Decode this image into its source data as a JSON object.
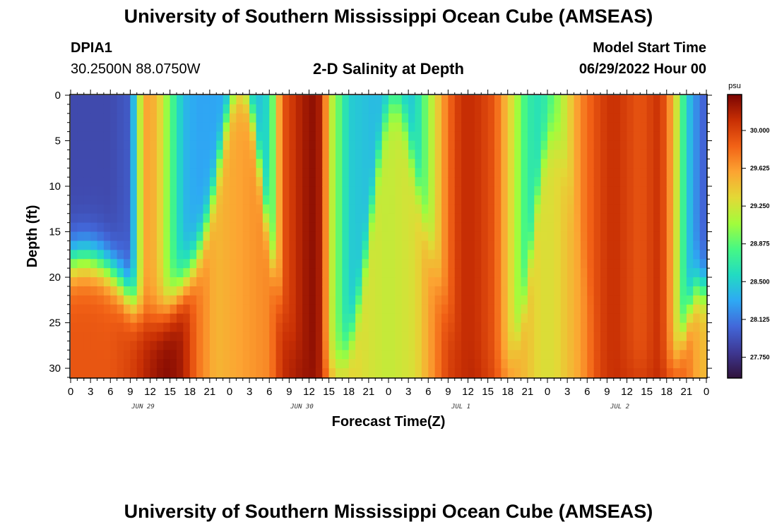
{
  "page": {
    "title_top": "University of Southern Mississippi Ocean Cube (AMSEAS)",
    "title_bottom": "University of Southern Mississippi Ocean Cube (AMSEAS)",
    "station_id": "DPIA1",
    "location": "30.2500N  88.0750W",
    "model_start_label": "Model Start Time",
    "model_start_value": "06/29/2022 Hour 00"
  },
  "colors": {
    "ramp": [
      "#30123b",
      "#3e3893",
      "#4267d9",
      "#2ea9f4",
      "#22dbc2",
      "#46f884",
      "#a2fc3c",
      "#e3d936",
      "#fca432",
      "#f26216",
      "#c82f04",
      "#7a0403"
    ]
  },
  "chart_data": {
    "type": "heatmap",
    "title": "2-D Salinity at Depth",
    "xlabel": "Forecast Time(Z)",
    "ylabel": "Depth (ft)",
    "y_ticks": [
      0,
      5,
      10,
      15,
      20,
      25,
      30
    ],
    "ylim": [
      0,
      31
    ],
    "x_tick_labels": [
      "0",
      "3",
      "6",
      "9",
      "12",
      "15",
      "18",
      "21",
      "0",
      "3",
      "6",
      "9",
      "12",
      "15",
      "18",
      "21",
      "0",
      "3",
      "6",
      "9",
      "12",
      "15",
      "18",
      "21",
      "0",
      "3",
      "6",
      "9",
      "12",
      "15",
      "18",
      "21",
      "0"
    ],
    "x_hours_range": [
      0,
      96
    ],
    "day_labels": [
      {
        "label": "JUN 29",
        "hour": 12
      },
      {
        "label": "JUN 30",
        "hour": 36
      },
      {
        "label": "JUL 1",
        "hour": 60
      },
      {
        "label": "JUL 2",
        "hour": 84
      }
    ],
    "colorbar": {
      "unit": "psu",
      "ticks": [
        "30.000",
        "29.625",
        "29.250",
        "28.875",
        "28.500",
        "28.125",
        "27.750"
      ],
      "tick_values": [
        30.0,
        29.625,
        29.25,
        28.875,
        28.5,
        28.125,
        27.75
      ],
      "range": [
        27.55,
        30.35
      ]
    },
    "surface_profile_hours": [
      0,
      6,
      9,
      11,
      13,
      15,
      17,
      19,
      22,
      27,
      30,
      32,
      35,
      37,
      38,
      39,
      42,
      46,
      48,
      52,
      55,
      57,
      59,
      61,
      64,
      67,
      69,
      71,
      73,
      77,
      80,
      82,
      84,
      86,
      89,
      91,
      92,
      93,
      95,
      96
    ],
    "surface_profile_psu": [
      27.9,
      27.9,
      28.0,
      29.6,
      29.5,
      28.9,
      28.4,
      28.3,
      28.3,
      28.3,
      28.6,
      29.9,
      30.2,
      30.3,
      30.1,
      29.3,
      28.5,
      28.4,
      28.4,
      28.5,
      29.3,
      29.8,
      30.1,
      30.1,
      29.9,
      29.2,
      28.7,
      28.6,
      28.9,
      29.7,
      30.0,
      30.1,
      30.0,
      29.9,
      30.1,
      29.5,
      29.0,
      28.5,
      28.1,
      28.0
    ],
    "bottom_profile_hours": [
      0,
      6,
      9,
      12,
      14,
      15,
      17,
      19,
      22,
      26,
      30,
      32,
      35,
      37,
      38,
      40,
      44,
      48,
      52,
      55,
      57,
      59,
      61,
      64,
      67,
      71,
      73,
      77,
      80,
      82,
      86,
      89,
      91,
      93,
      95,
      96
    ],
    "bottom_profile_psu": [
      29.9,
      29.9,
      30.0,
      30.2,
      30.3,
      30.3,
      30.2,
      29.8,
      29.5,
      29.6,
      29.7,
      30.1,
      30.25,
      30.25,
      30.1,
      29.5,
      29.3,
      29.2,
      29.3,
      29.7,
      30.0,
      30.1,
      30.15,
      30.0,
      29.6,
      29.3,
      29.3,
      29.6,
      30.0,
      30.1,
      30.1,
      30.15,
      30.0,
      29.8,
      29.5,
      29.5
    ]
  }
}
